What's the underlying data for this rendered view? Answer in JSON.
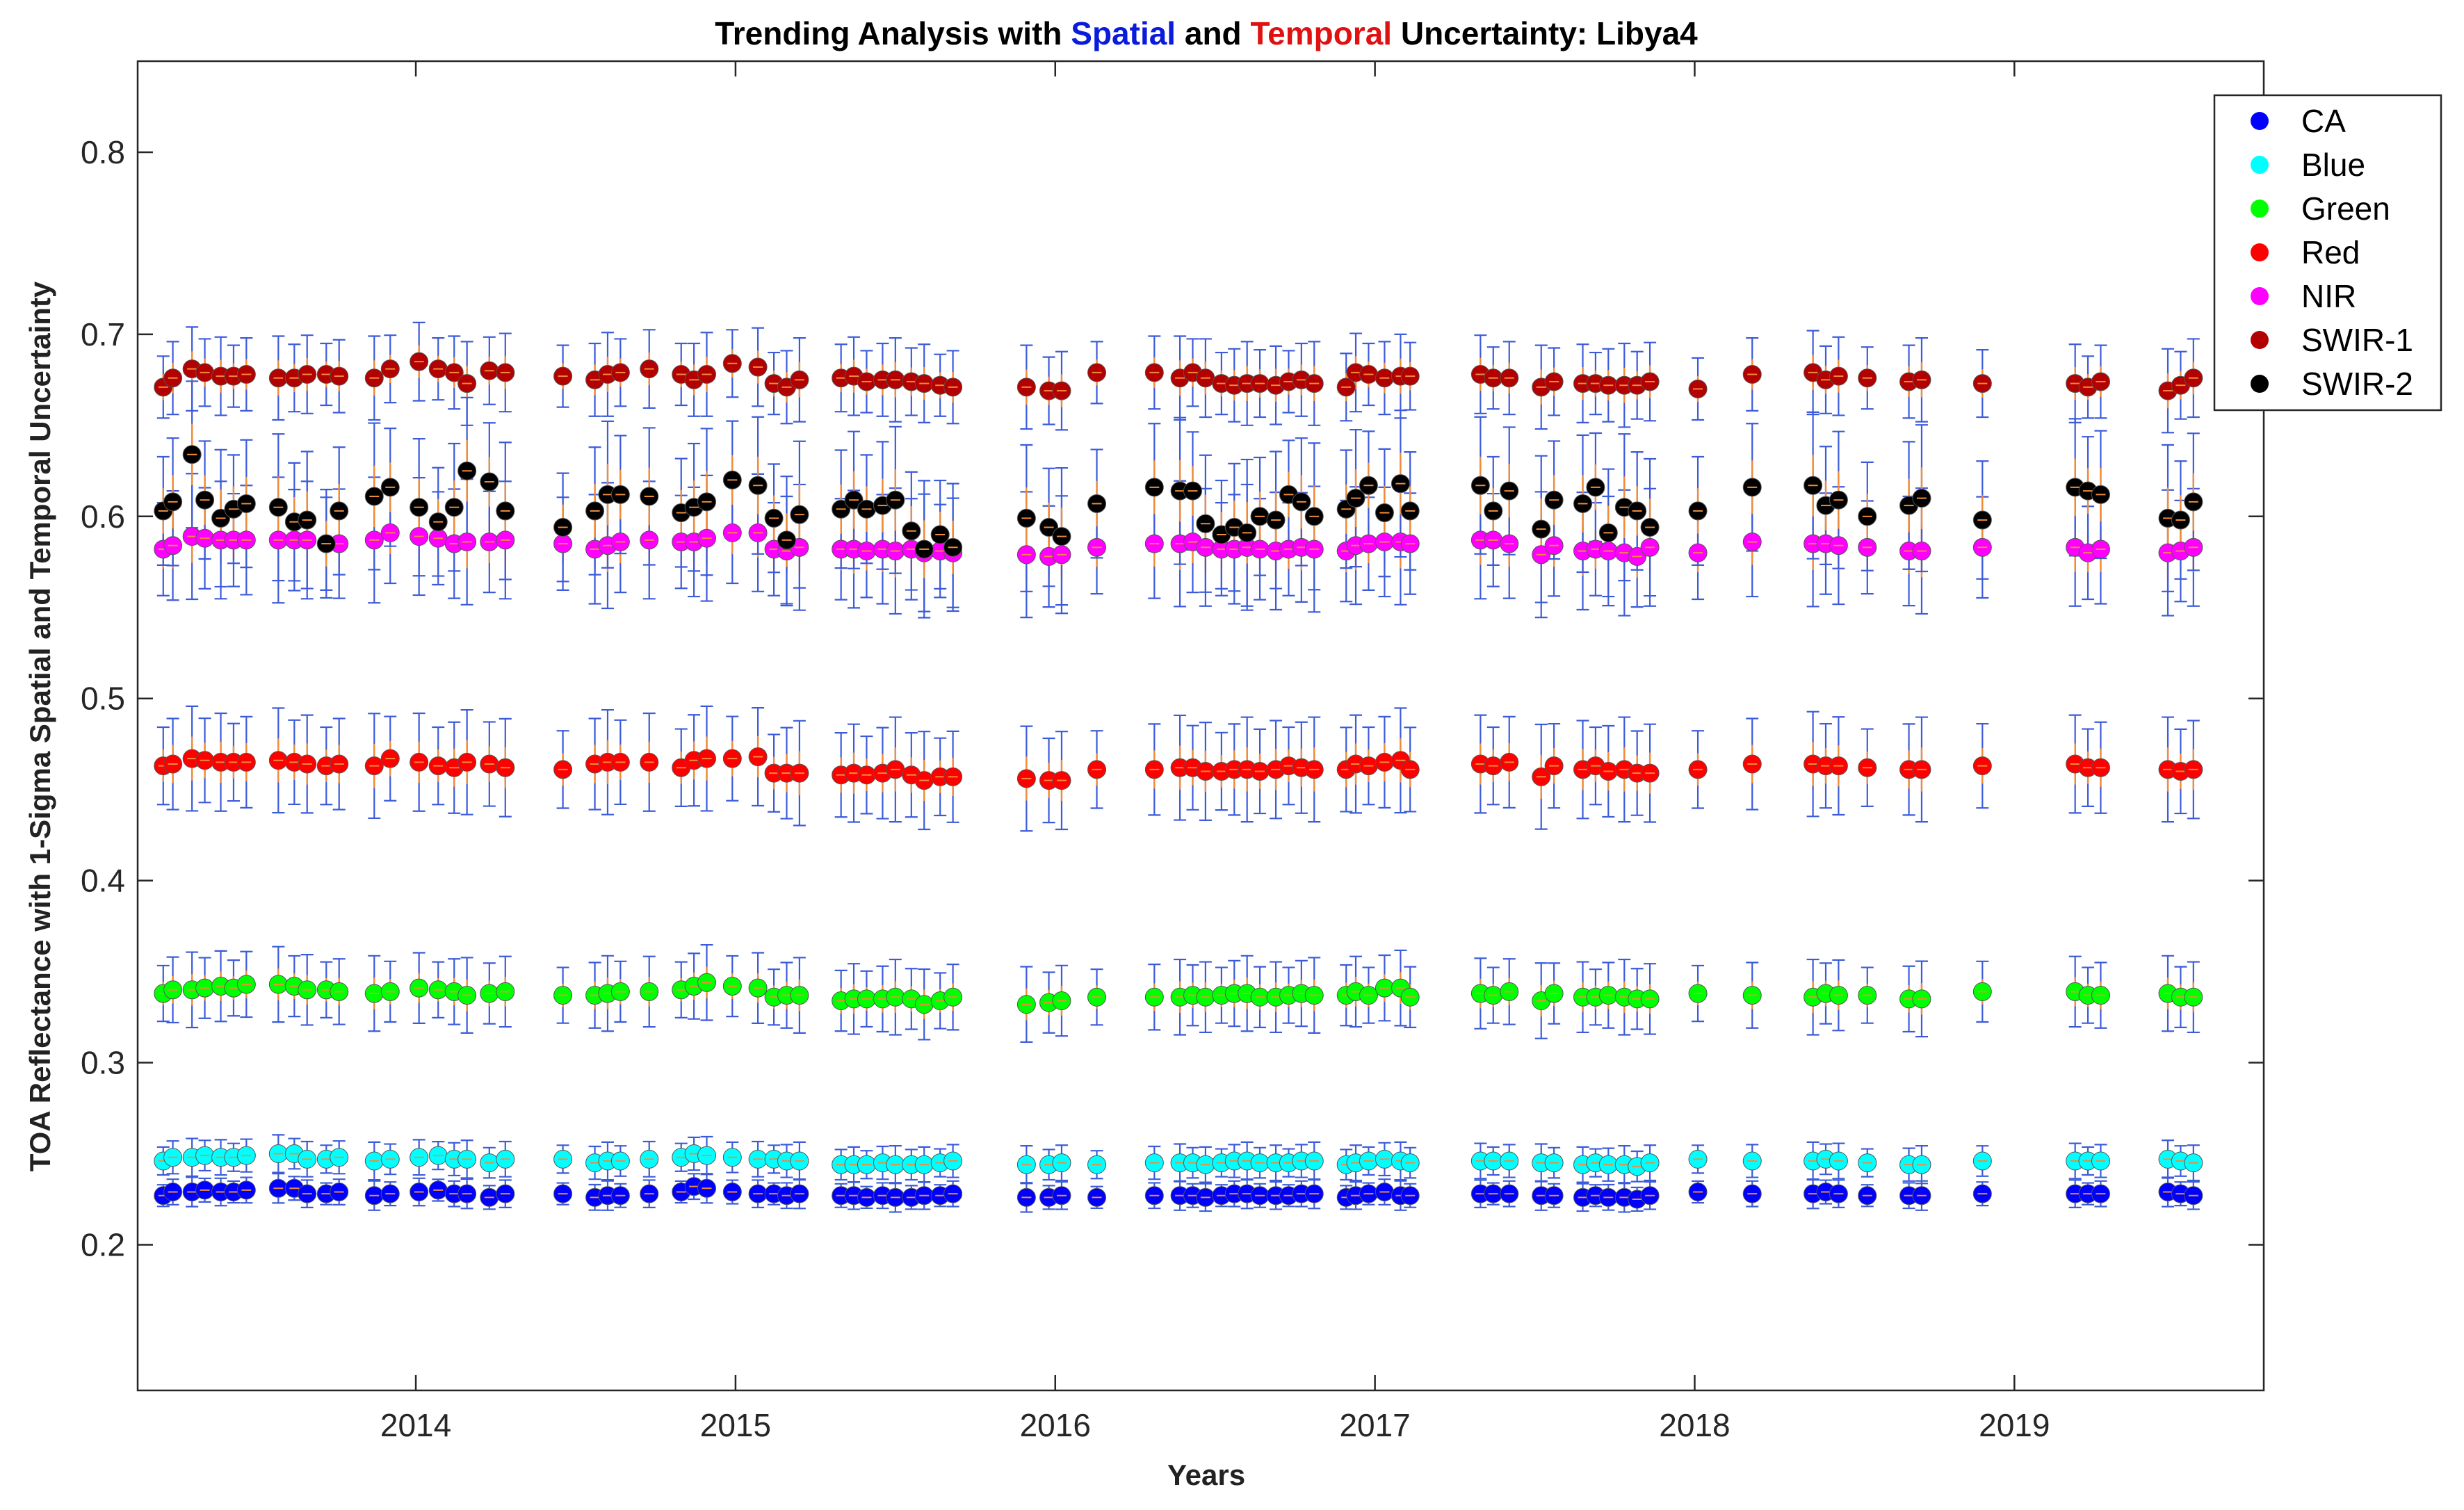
{
  "chart_data": {
    "type": "scatter",
    "title_parts": [
      {
        "text": "Trending Analysis with ",
        "color": "#000000"
      },
      {
        "text": "Spatial",
        "color": "#0a1bdc"
      },
      {
        "text": " and ",
        "color": "#000000"
      },
      {
        "text": "Temporal",
        "color": "#e01111"
      },
      {
        "text": " Uncertainty: Libya4",
        "color": "#000000"
      }
    ],
    "xlabel": "Years",
    "ylabel": "TOA Reflectance with 1-Sigma Spatial and Temporal Uncertainty",
    "xlim": [
      2013.13,
      2019.78
    ],
    "ylim": [
      0.12,
      0.85
    ],
    "xticks": [
      2014,
      2015,
      2016,
      2017,
      2018,
      2019
    ],
    "xtick_labels": [
      "2014",
      "2015",
      "2016",
      "2017",
      "2018",
      "2019"
    ],
    "yticks": [
      0.2,
      0.3,
      0.4,
      0.5,
      0.6,
      0.7,
      0.8
    ],
    "ytick_labels": [
      "0.2",
      "0.3",
      "0.4",
      "0.5",
      "0.6",
      "0.7",
      "0.8"
    ],
    "legend_position": "top-right",
    "spatial_error_color": "#3b5bdb",
    "temporal_error_color": "#f08c3a",
    "x": [
      2013.21,
      2013.24,
      2013.3,
      2013.34,
      2013.39,
      2013.43,
      2013.47,
      2013.57,
      2013.62,
      2013.66,
      2013.72,
      2013.76,
      2013.87,
      2013.92,
      2014.01,
      2014.07,
      2014.12,
      2014.16,
      2014.23,
      2014.28,
      2014.46,
      2014.56,
      2014.6,
      2014.64,
      2014.73,
      2014.83,
      2014.87,
      2014.91,
      2014.99,
      2015.07,
      2015.12,
      2015.16,
      2015.2,
      2015.33,
      2015.37,
      2015.41,
      2015.46,
      2015.5,
      2015.55,
      2015.59,
      2015.64,
      2015.68,
      2015.91,
      2015.98,
      2016.02,
      2016.13,
      2016.31,
      2016.39,
      2016.43,
      2016.47,
      2016.52,
      2016.56,
      2016.6,
      2016.64,
      2016.69,
      2016.73,
      2016.77,
      2016.81,
      2016.91,
      2016.94,
      2016.98,
      2017.03,
      2017.08,
      2017.11,
      2017.33,
      2017.37,
      2017.42,
      2017.52,
      2017.56,
      2017.65,
      2017.69,
      2017.73,
      2017.78,
      2017.82,
      2017.86,
      2018.01,
      2018.18,
      2018.37,
      2018.41,
      2018.45,
      2018.54,
      2018.67,
      2018.71,
      2018.9,
      2019.19,
      2019.23,
      2019.27,
      2019.48,
      2019.52,
      2019.56
    ],
    "series": [
      {
        "name": "CA",
        "color": "#0000ff",
        "err": 0.007,
        "values": [
          0.227,
          0.229,
          0.229,
          0.23,
          0.229,
          0.229,
          0.23,
          0.231,
          0.231,
          0.228,
          0.228,
          0.229,
          0.227,
          0.228,
          0.229,
          0.23,
          0.228,
          0.228,
          0.226,
          0.228,
          0.228,
          0.226,
          0.227,
          0.227,
          0.228,
          0.229,
          0.232,
          0.231,
          0.229,
          0.228,
          0.228,
          0.227,
          0.228,
          0.227,
          0.227,
          0.226,
          0.227,
          0.226,
          0.226,
          0.227,
          0.227,
          0.228,
          0.226,
          0.226,
          0.227,
          0.226,
          0.227,
          0.227,
          0.227,
          0.226,
          0.227,
          0.228,
          0.228,
          0.227,
          0.227,
          0.227,
          0.228,
          0.228,
          0.226,
          0.227,
          0.228,
          0.229,
          0.227,
          0.227,
          0.228,
          0.228,
          0.228,
          0.227,
          0.227,
          0.226,
          0.227,
          0.226,
          0.226,
          0.225,
          0.227,
          0.229,
          0.228,
          0.228,
          0.229,
          0.228,
          0.227,
          0.227,
          0.227,
          0.228,
          0.228,
          0.228,
          0.228,
          0.229,
          0.228,
          0.227
        ]
      },
      {
        "name": "Blue",
        "color": "#00ffff",
        "err": 0.009,
        "values": [
          0.246,
          0.248,
          0.248,
          0.249,
          0.248,
          0.248,
          0.249,
          0.25,
          0.25,
          0.247,
          0.247,
          0.248,
          0.246,
          0.247,
          0.248,
          0.249,
          0.247,
          0.247,
          0.245,
          0.247,
          0.247,
          0.245,
          0.246,
          0.246,
          0.247,
          0.248,
          0.25,
          0.249,
          0.248,
          0.247,
          0.247,
          0.246,
          0.246,
          0.244,
          0.244,
          0.244,
          0.245,
          0.244,
          0.244,
          0.244,
          0.245,
          0.246,
          0.244,
          0.244,
          0.245,
          0.244,
          0.245,
          0.245,
          0.245,
          0.244,
          0.245,
          0.246,
          0.246,
          0.245,
          0.245,
          0.245,
          0.246,
          0.246,
          0.244,
          0.245,
          0.246,
          0.247,
          0.246,
          0.245,
          0.246,
          0.246,
          0.246,
          0.245,
          0.245,
          0.244,
          0.245,
          0.244,
          0.244,
          0.243,
          0.245,
          0.247,
          0.246,
          0.246,
          0.247,
          0.246,
          0.245,
          0.244,
          0.244,
          0.246,
          0.246,
          0.246,
          0.246,
          0.247,
          0.246,
          0.245
        ]
      },
      {
        "name": "Green",
        "color": "#00ff00",
        "err": 0.018,
        "values": [
          0.338,
          0.34,
          0.34,
          0.341,
          0.342,
          0.341,
          0.343,
          0.343,
          0.342,
          0.34,
          0.34,
          0.339,
          0.338,
          0.339,
          0.341,
          0.34,
          0.339,
          0.337,
          0.338,
          0.339,
          0.337,
          0.337,
          0.338,
          0.339,
          0.339,
          0.34,
          0.342,
          0.344,
          0.342,
          0.341,
          0.336,
          0.337,
          0.337,
          0.334,
          0.335,
          0.335,
          0.335,
          0.336,
          0.335,
          0.332,
          0.334,
          0.336,
          0.332,
          0.333,
          0.334,
          0.336,
          0.336,
          0.336,
          0.337,
          0.336,
          0.337,
          0.338,
          0.338,
          0.336,
          0.336,
          0.337,
          0.338,
          0.337,
          0.337,
          0.339,
          0.337,
          0.341,
          0.341,
          0.336,
          0.338,
          0.337,
          0.339,
          0.334,
          0.338,
          0.336,
          0.336,
          0.337,
          0.336,
          0.335,
          0.335,
          0.338,
          0.337,
          0.336,
          0.338,
          0.337,
          0.337,
          0.335,
          0.335,
          0.339,
          0.339,
          0.337,
          0.337,
          0.338,
          0.336,
          0.336
        ]
      },
      {
        "name": "Red",
        "color": "#ff0000",
        "err": 0.025,
        "values": [
          0.463,
          0.464,
          0.467,
          0.466,
          0.465,
          0.465,
          0.465,
          0.466,
          0.465,
          0.464,
          0.463,
          0.464,
          0.463,
          0.467,
          0.465,
          0.463,
          0.462,
          0.465,
          0.464,
          0.462,
          0.461,
          0.464,
          0.465,
          0.465,
          0.465,
          0.462,
          0.466,
          0.467,
          0.467,
          0.468,
          0.459,
          0.459,
          0.459,
          0.458,
          0.459,
          0.458,
          0.459,
          0.461,
          0.458,
          0.455,
          0.457,
          0.457,
          0.456,
          0.455,
          0.455,
          0.461,
          0.461,
          0.462,
          0.462,
          0.46,
          0.46,
          0.461,
          0.461,
          0.46,
          0.461,
          0.463,
          0.462,
          0.461,
          0.461,
          0.464,
          0.463,
          0.465,
          0.466,
          0.461,
          0.464,
          0.463,
          0.465,
          0.457,
          0.463,
          0.461,
          0.463,
          0.46,
          0.461,
          0.459,
          0.459,
          0.461,
          0.464,
          0.464,
          0.463,
          0.463,
          0.462,
          0.461,
          0.461,
          0.463,
          0.464,
          0.462,
          0.462,
          0.461,
          0.46,
          0.461
        ]
      },
      {
        "name": "NIR",
        "color": "#ff00ff",
        "err": 0.03,
        "values": [
          0.582,
          0.584,
          0.589,
          0.588,
          0.587,
          0.587,
          0.587,
          0.587,
          0.587,
          0.587,
          0.585,
          0.585,
          0.587,
          0.591,
          0.589,
          0.588,
          0.585,
          0.586,
          0.586,
          0.587,
          0.585,
          0.582,
          0.584,
          0.586,
          0.587,
          0.586,
          0.586,
          0.588,
          0.591,
          0.591,
          0.582,
          0.581,
          0.583,
          0.582,
          0.582,
          0.581,
          0.582,
          0.581,
          0.582,
          0.58,
          0.581,
          0.58,
          0.579,
          0.578,
          0.579,
          0.583,
          0.585,
          0.585,
          0.586,
          0.583,
          0.582,
          0.582,
          0.583,
          0.582,
          0.581,
          0.582,
          0.583,
          0.582,
          0.581,
          0.584,
          0.585,
          0.586,
          0.586,
          0.585,
          0.587,
          0.587,
          0.585,
          0.579,
          0.584,
          0.581,
          0.582,
          0.581,
          0.58,
          0.578,
          0.583,
          0.58,
          0.586,
          0.585,
          0.585,
          0.584,
          0.583,
          0.581,
          0.581,
          0.583,
          0.583,
          0.58,
          0.582,
          0.58,
          0.581,
          0.583
        ]
      },
      {
        "name": "SWIR-1",
        "color": "#b30000",
        "err": 0.02,
        "values": [
          0.671,
          0.676,
          0.681,
          0.679,
          0.677,
          0.677,
          0.678,
          0.676,
          0.676,
          0.678,
          0.678,
          0.677,
          0.676,
          0.681,
          0.685,
          0.681,
          0.679,
          0.673,
          0.68,
          0.679,
          0.677,
          0.675,
          0.678,
          0.679,
          0.681,
          0.678,
          0.675,
          0.678,
          0.684,
          0.682,
          0.673,
          0.671,
          0.675,
          0.676,
          0.677,
          0.674,
          0.675,
          0.675,
          0.674,
          0.673,
          0.672,
          0.671,
          0.671,
          0.669,
          0.669,
          0.679,
          0.679,
          0.676,
          0.679,
          0.676,
          0.673,
          0.672,
          0.673,
          0.673,
          0.672,
          0.674,
          0.675,
          0.673,
          0.671,
          0.679,
          0.678,
          0.676,
          0.677,
          0.677,
          0.678,
          0.676,
          0.676,
          0.671,
          0.674,
          0.673,
          0.673,
          0.672,
          0.672,
          0.672,
          0.674,
          0.67,
          0.678,
          0.679,
          0.675,
          0.677,
          0.676,
          0.674,
          0.675,
          0.673,
          0.673,
          0.671,
          0.674,
          0.669,
          0.672,
          0.676
        ]
      },
      {
        "name": "SWIR-2",
        "color": "#000000",
        "err": 0.035,
        "values": [
          0.603,
          0.608,
          0.634,
          0.609,
          0.599,
          0.604,
          0.607,
          0.605,
          0.597,
          0.598,
          0.585,
          0.603,
          0.611,
          0.616,
          0.605,
          0.597,
          0.605,
          0.625,
          0.619,
          0.603,
          0.594,
          0.603,
          0.612,
          0.612,
          0.611,
          0.602,
          0.605,
          0.608,
          0.62,
          0.617,
          0.599,
          0.587,
          0.601,
          0.604,
          0.609,
          0.604,
          0.606,
          0.609,
          0.592,
          0.582,
          0.59,
          0.583,
          0.599,
          0.594,
          0.589,
          0.607,
          0.616,
          0.614,
          0.614,
          0.596,
          0.59,
          0.594,
          0.591,
          0.6,
          0.598,
          0.612,
          0.608,
          0.6,
          0.604,
          0.61,
          0.617,
          0.602,
          0.618,
          0.603,
          0.617,
          0.603,
          0.614,
          0.593,
          0.609,
          0.607,
          0.616,
          0.591,
          0.605,
          0.603,
          0.594,
          0.603,
          0.616,
          0.617,
          0.606,
          0.609,
          0.6,
          0.606,
          0.61,
          0.598,
          0.616,
          0.614,
          0.612,
          0.599,
          0.598,
          0.608
        ]
      }
    ]
  }
}
